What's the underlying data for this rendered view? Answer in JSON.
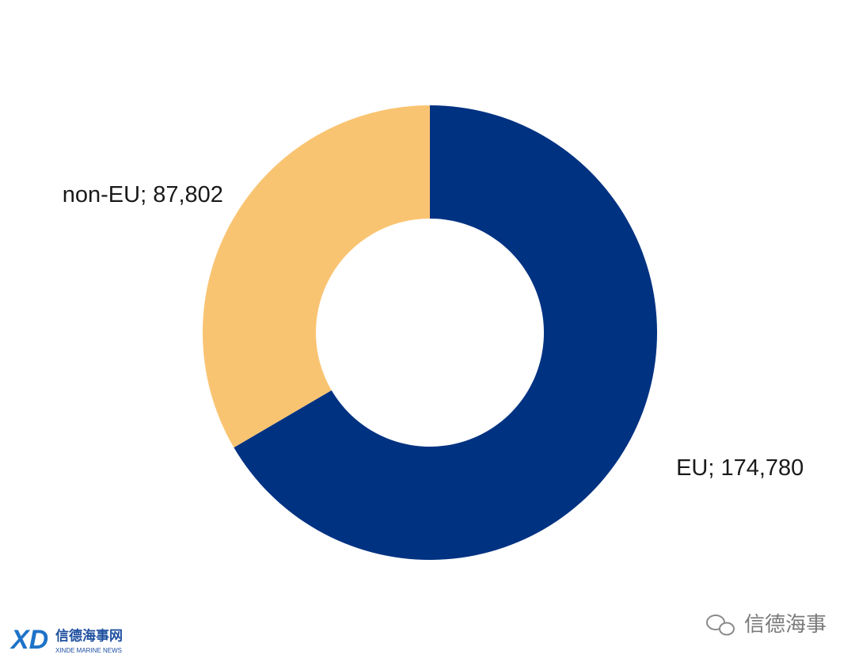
{
  "chart_data": {
    "type": "donut",
    "values": [
      174780,
      87802
    ],
    "value_labels": [
      "EU; 174,780",
      "non-EU; 87,802"
    ],
    "colors": [
      "#003282",
      "#f9c472"
    ]
  },
  "watermark": {
    "logo_mark": "XD",
    "logo_title": "信德海事网",
    "logo_subtitle": "XINDE MARINE NEWS",
    "account": "信德海事"
  }
}
